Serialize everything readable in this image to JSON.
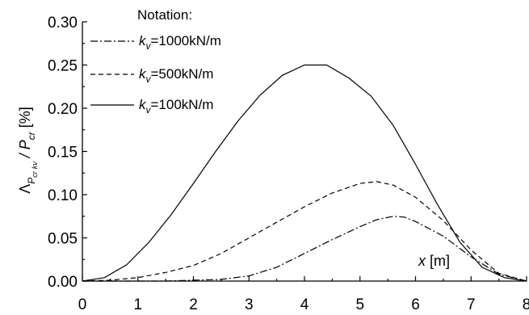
{
  "chart_data": {
    "type": "line",
    "title": "",
    "xlabel": "x [m]",
    "xlim": [
      0,
      8
    ],
    "ylim": [
      0,
      0.3
    ],
    "x_ticks": [
      "0",
      "1",
      "2",
      "3",
      "4",
      "5",
      "6",
      "7",
      "8"
    ],
    "y_ticks": [
      "0.00",
      "0.05",
      "0.10",
      "0.15",
      "0.20",
      "0.25",
      "0.30"
    ],
    "ylabel": {
      "main": "Λ",
      "sub1": "P",
      "subsub1": "cr",
      "subsub2": "kv",
      "slash": " / P",
      "sub2": "cr",
      "unit": " [%]"
    },
    "legend": {
      "title": "Notation:",
      "placement": "top-left",
      "entries": [
        {
          "var": "k",
          "sub": "v",
          "text": "=1000kN/m",
          "dash": "dash-dot"
        },
        {
          "var": "k",
          "sub": "v",
          "text": "=500kN/m",
          "dash": "dashed"
        },
        {
          "var": "k",
          "sub": "v",
          "text": "=100kN/m",
          "dash": "solid"
        }
      ]
    },
    "series": [
      {
        "style": "dash-dot",
        "x": [
          0,
          0.5,
          1,
          1.5,
          2,
          2.5,
          3,
          3.5,
          4,
          4.5,
          5,
          5.3,
          5.6,
          5.8,
          6,
          6.5,
          7,
          7.5,
          8
        ],
        "y": [
          0,
          0,
          0,
          0,
          0.001,
          0.002,
          0.006,
          0.016,
          0.032,
          0.048,
          0.063,
          0.071,
          0.075,
          0.074,
          0.069,
          0.052,
          0.028,
          0.008,
          0
        ]
      },
      {
        "style": "dashed",
        "x": [
          0,
          0.5,
          1,
          1.5,
          2,
          2.5,
          3,
          3.5,
          4,
          4.5,
          5,
          5.3,
          5.6,
          6,
          6.5,
          7,
          7.5,
          8
        ],
        "y": [
          0,
          0.001,
          0.004,
          0.01,
          0.018,
          0.032,
          0.05,
          0.068,
          0.086,
          0.102,
          0.113,
          0.115,
          0.111,
          0.097,
          0.07,
          0.036,
          0.009,
          0
        ]
      },
      {
        "style": "solid",
        "x": [
          0,
          0.4,
          0.8,
          1.2,
          1.6,
          2,
          2.4,
          2.8,
          3.2,
          3.6,
          4,
          4.4,
          4.8,
          5.2,
          5.6,
          6,
          6.4,
          6.8,
          7.2,
          7.6,
          8
        ],
        "y": [
          0,
          0.004,
          0.019,
          0.045,
          0.077,
          0.113,
          0.15,
          0.185,
          0.215,
          0.238,
          0.25,
          0.25,
          0.235,
          0.214,
          0.18,
          0.135,
          0.088,
          0.045,
          0.016,
          0.004,
          0
        ]
      }
    ]
  }
}
